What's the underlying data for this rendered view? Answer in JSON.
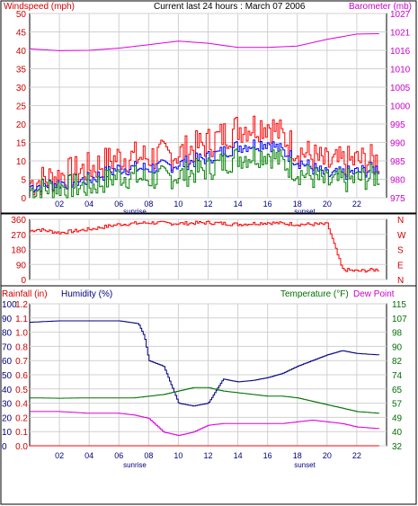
{
  "chart_data": [
    {
      "type": "line",
      "title": "Current last 24 hours : March 07 2006",
      "left_axis_label": "Windspeed (mph)",
      "right_axis_label": "Barometer (mb)",
      "x_ticks": [
        "02",
        "04",
        "06",
        "08",
        "10",
        "12",
        "14",
        "16",
        "18",
        "20",
        "22"
      ],
      "x_annotations": {
        "sunrise": "sunrise",
        "sunset": "sunset"
      },
      "ylim_left": [
        0,
        50
      ],
      "yticks_left": [
        "0",
        "5",
        "10",
        "15",
        "20",
        "25",
        "30",
        "35",
        "40",
        "45",
        "50"
      ],
      "ylim_right": [
        975,
        1027
      ],
      "yticks_right": [
        "975",
        "980",
        "985",
        "990",
        "995",
        "1000",
        "1005",
        "1010",
        "1016",
        "1021",
        "1027"
      ],
      "grid": true,
      "colors": {
        "gust": "#ff0000",
        "average": "#0000ff",
        "low": "#008000",
        "barometer": "#e000e0"
      },
      "series": [
        {
          "key": "barometer",
          "axis": "right",
          "x": [
            0,
            2,
            4,
            6,
            8,
            10,
            12,
            14,
            16,
            18,
            20,
            22,
            23.5
          ],
          "values": [
            1017,
            1016.5,
            1016.6,
            1017.2,
            1018.2,
            1019.2,
            1018.6,
            1017.4,
            1017.4,
            1017.8,
            1019.7,
            1021.2,
            1021.3
          ]
        },
        {
          "key": "gust",
          "axis": "left",
          "x": [
            0,
            2,
            4,
            6,
            8,
            10,
            12,
            14,
            16,
            18,
            20,
            22,
            23.5
          ],
          "values": [
            4,
            6,
            8,
            11,
            11,
            12,
            15,
            19,
            20,
            13,
            9,
            10,
            10
          ]
        },
        {
          "key": "average",
          "axis": "left",
          "x": [
            0,
            2,
            4,
            6,
            8,
            10,
            12,
            14,
            16,
            18,
            20,
            22,
            23.5
          ],
          "values": [
            3,
            4,
            5,
            8,
            8,
            9,
            11,
            14,
            15,
            10,
            6,
            7,
            8
          ]
        },
        {
          "key": "low",
          "axis": "left",
          "x": [
            0,
            2,
            4,
            6,
            8,
            10,
            12,
            14,
            16,
            18,
            20,
            22,
            23.5
          ],
          "values": [
            2,
            3,
            3,
            6,
            5,
            6,
            8,
            11,
            12,
            7,
            4,
            5,
            6
          ]
        }
      ]
    },
    {
      "type": "line",
      "ylim_left": [
        0,
        360
      ],
      "yticks_left": [
        "0",
        "90",
        "180",
        "270",
        "360"
      ],
      "compass_right": [
        "N",
        "W",
        "S",
        "E",
        "N"
      ],
      "grid": true,
      "colors": {
        "direction": "#ff0000"
      },
      "series": [
        {
          "key": "direction",
          "x": [
            0,
            0.5,
            2,
            4,
            6,
            8,
            10,
            12,
            14,
            16,
            18,
            20,
            21,
            22,
            23.5
          ],
          "values": [
            290,
            300,
            280,
            300,
            330,
            340,
            335,
            340,
            330,
            340,
            330,
            330,
            60,
            50,
            60
          ]
        }
      ]
    },
    {
      "type": "line",
      "left_axis_label_1": "Rainfall (in)",
      "left_axis_label_2": "Humidity (%)",
      "right_axis_label_1": "Temperature (°F)",
      "right_axis_label_2": "Dew Point",
      "x_ticks": [
        "02",
        "04",
        "06",
        "08",
        "10",
        "12",
        "14",
        "16",
        "18",
        "20",
        "22"
      ],
      "x_annotations": {
        "sunrise": "sunrise",
        "sunset": "sunset"
      },
      "ylim_humidity": [
        0,
        100
      ],
      "yticks_humidity": [
        "0",
        "10",
        "20",
        "30",
        "40",
        "50",
        "60",
        "70",
        "80",
        "90",
        "100"
      ],
      "ylim_rainfall": [
        0,
        1.2
      ],
      "yticks_rainfall": [
        "0.0",
        "0.1",
        "0.2",
        "0.4",
        "0.5",
        "0.6",
        "0.7",
        "0.8",
        "1.0",
        "1.1",
        "1.2"
      ],
      "ylim_temp": [
        32,
        115
      ],
      "yticks_temp": [
        "32",
        "40",
        "49",
        "57",
        "65",
        "74",
        "82",
        "90",
        "98",
        "107",
        "115"
      ],
      "grid": true,
      "colors": {
        "humidity": "#000080",
        "temperature": "#007000",
        "dewpoint": "#e000e0",
        "rainfall": "#ff0000"
      },
      "series": [
        {
          "key": "humidity",
          "x": [
            0,
            2,
            4,
            6,
            7.3,
            7.7,
            8,
            9,
            10,
            11,
            12,
            13,
            14,
            15,
            16,
            17,
            18,
            19,
            20,
            21,
            22,
            23.5
          ],
          "values": [
            87,
            88,
            88,
            88,
            86,
            77,
            60,
            56,
            30,
            28,
            30,
            47,
            45,
            46,
            48,
            51,
            56,
            60,
            64,
            67,
            65,
            64
          ]
        },
        {
          "key": "temperature",
          "x": [
            0,
            2,
            4,
            6,
            7,
            8,
            9,
            10,
            11,
            12,
            13,
            14,
            15,
            16,
            17,
            18,
            19,
            20,
            21,
            22,
            23.5
          ],
          "values": [
            60,
            59.8,
            60,
            60,
            60,
            61,
            62,
            64,
            66,
            66,
            64,
            63,
            62,
            61,
            61,
            60,
            58,
            56,
            54,
            52,
            51
          ]
        },
        {
          "key": "dewpoint",
          "x": [
            0,
            2,
            4,
            6,
            7,
            8,
            9,
            10,
            11,
            12,
            13,
            14,
            15,
            16,
            17,
            18,
            19,
            20,
            21,
            22,
            23.5
          ],
          "values": [
            52,
            52,
            51,
            51,
            50,
            48,
            40,
            38,
            40,
            44,
            45,
            45,
            45,
            45,
            45,
            46,
            47,
            46,
            45,
            43,
            42
          ]
        },
        {
          "key": "rainfall",
          "x": [
            0,
            23.5
          ],
          "values": [
            0,
            0
          ]
        }
      ]
    }
  ]
}
